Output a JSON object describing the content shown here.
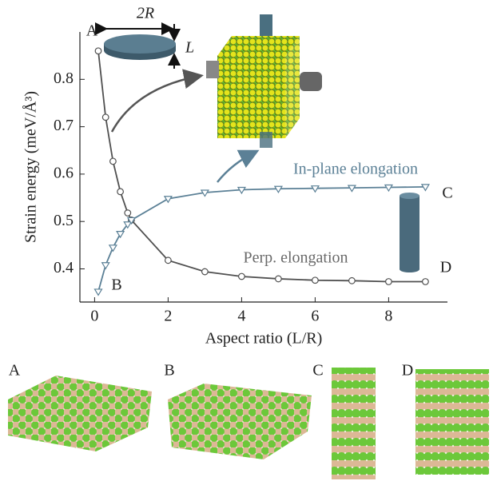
{
  "chart_data": {
    "type": "line",
    "x": [
      0.1,
      0.3,
      0.5,
      0.7,
      0.9,
      1,
      2,
      3,
      4,
      5,
      6,
      7,
      8,
      9
    ],
    "series": [
      {
        "name": "Perp. elongation",
        "color": "#505050",
        "marker": "circle",
        "values": [
          0.86,
          0.72,
          0.627,
          0.563,
          0.518,
          0.503,
          0.418,
          0.394,
          0.384,
          0.379,
          0.376,
          0.375,
          0.373,
          0.373
        ]
      },
      {
        "name": "In-plane elongation",
        "color": "#5b8096",
        "marker": "triangle-down",
        "values": [
          0.352,
          0.408,
          0.445,
          0.474,
          0.494,
          0.503,
          0.548,
          0.561,
          0.567,
          0.569,
          0.57,
          0.571,
          0.572,
          0.573
        ]
      }
    ],
    "xlabel": "Aspect ratio (L/R)",
    "ylabel": "Strain energy (meV/Å³)",
    "xlim": [
      -0.4,
      9.6
    ],
    "ylim": [
      0.33,
      0.9
    ],
    "xticks": [
      0,
      2,
      4,
      6,
      8
    ],
    "yticks": [
      0.4,
      0.5,
      0.6,
      0.7,
      0.8
    ],
    "point_labels": [
      "A",
      "B",
      "C",
      "D"
    ],
    "inset_labels": [
      "2R",
      "L"
    ],
    "panel_labels": [
      "A",
      "B",
      "C",
      "D"
    ]
  }
}
